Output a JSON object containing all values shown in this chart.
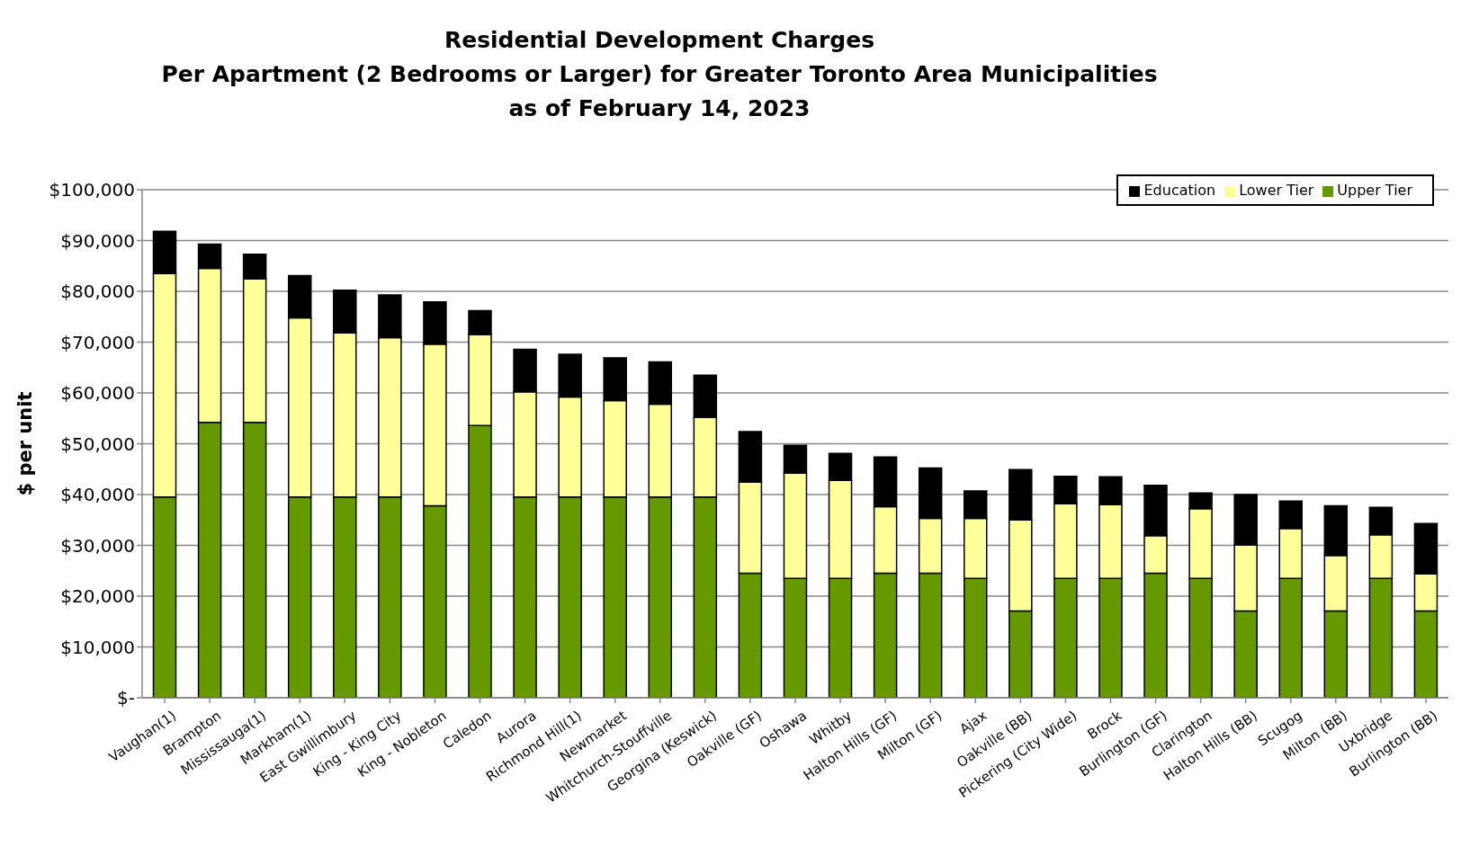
{
  "chart_data": {
    "type": "bar",
    "title": "Residential Development Charges\nPer Apartment (2 Bedrooms or Larger) for Greater Toronto Area Municipalities\nas of February 14, 2023",
    "ylabel": "$ per unit",
    "categories": [
      "Vaughan(1)",
      "Brampton",
      "Mississauga(1)",
      "Markham(1)",
      "East Gwillimbury",
      "King - King City",
      "King - Nobleton",
      "Caledon",
      "Aurora",
      "Richmond Hill(1)",
      "Newmarket",
      "Whitchurch-Stouffville",
      "Georgina (Keswick)",
      "Oakville (GF)",
      "Oshawa",
      "Whitby",
      "Halton Hills (GF)",
      "Milton (GF)",
      "Ajax",
      "Oakville (BB)",
      "Pickering (City Wide)",
      "Brock",
      "Burlington (GF)",
      "Clarington",
      "Halton Hills (BB)",
      "Scugog",
      "Milton (BB)",
      "Uxbridge",
      "Burlington (BB)"
    ],
    "stacked": true,
    "series": [
      {
        "name": "Upper Tier",
        "color": "#669900",
        "values": [
          39500,
          54200,
          54200,
          39500,
          39500,
          39500,
          37800,
          53600,
          39500,
          39500,
          39500,
          39500,
          39500,
          24500,
          23500,
          23500,
          24500,
          24500,
          23500,
          17100,
          23500,
          23500,
          24500,
          23500,
          17100,
          23500,
          17100,
          23500,
          17100
        ]
      },
      {
        "name": "Lower Tier",
        "color": "#ffff99",
        "values": [
          44000,
          30300,
          28300,
          35300,
          32300,
          31400,
          31800,
          17900,
          20700,
          19700,
          19000,
          18300,
          15700,
          18000,
          20700,
          19300,
          13100,
          10800,
          11800,
          17900,
          14700,
          14500,
          7400,
          13700,
          13000,
          9800,
          10900,
          8600,
          7300
        ]
      },
      {
        "name": "Education",
        "color": "#000000",
        "values": [
          8300,
          4800,
          4800,
          8300,
          8400,
          8400,
          8300,
          4700,
          8400,
          8400,
          8400,
          8300,
          8300,
          9900,
          5500,
          5300,
          9800,
          9900,
          5400,
          9900,
          5400,
          5500,
          9900,
          3100,
          9900,
          5400,
          9800,
          5400,
          9900
        ]
      }
    ],
    "ylim": [
      0,
      100000
    ],
    "yticks": [
      {
        "value": 0,
        "label": "$-"
      },
      {
        "value": 10000,
        "label": "$10,000"
      },
      {
        "value": 20000,
        "label": "$20,000"
      },
      {
        "value": 30000,
        "label": "$30,000"
      },
      {
        "value": 40000,
        "label": "$40,000"
      },
      {
        "value": 50000,
        "label": "$50,000"
      },
      {
        "value": 60000,
        "label": "$60,000"
      },
      {
        "value": 70000,
        "label": "$70,000"
      },
      {
        "value": 80000,
        "label": "$80,000"
      },
      {
        "value": 90000,
        "label": "$90,000"
      },
      {
        "value": 100000,
        "label": "$100,000"
      }
    ],
    "grid": "y",
    "legend": "top right"
  }
}
